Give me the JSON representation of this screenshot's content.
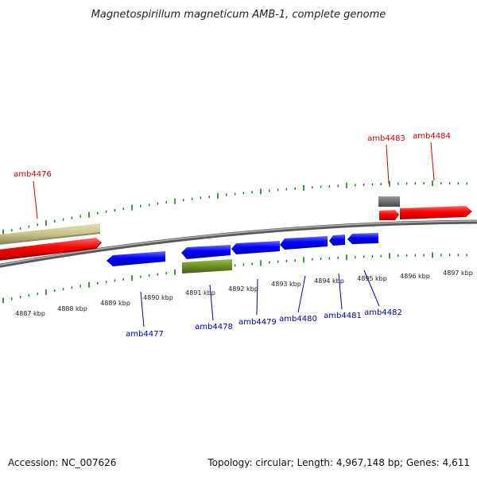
{
  "title": "Magnetospirillum magneticum AMB-1, complete genome",
  "footer": {
    "accession": "Accession: NC_007626",
    "summary": "Topology: circular; Length: 4,967,148 bp; Genes: 4,611"
  },
  "kbp_labels": [
    "4887 kbp",
    "4888 kbp",
    "4889 kbp",
    "4890 kbp",
    "4891 kbp",
    "4892 kbp",
    "4893 kbp",
    "4894 kbp",
    "4895 kbp",
    "4896 kbp",
    "4897 kbp"
  ],
  "gene_labels": {
    "forward": [
      "amb4476",
      "amb4483",
      "amb4484"
    ],
    "reverse": [
      "amb4477",
      "amb4478",
      "amb4479",
      "amb4480",
      "amb4481",
      "amb4482"
    ]
  },
  "colors": {
    "forward_label": "#cc0000",
    "reverse_label": "#0000aa",
    "forward_gene": "#ff0000",
    "reverse_gene": "#0000ff",
    "feature_tan": "#c8c48a",
    "feature_green": "#6b8e23",
    "feature_gray": "#707070",
    "tick": "#1a7a1a",
    "backbone": "#8a8a8a"
  }
}
